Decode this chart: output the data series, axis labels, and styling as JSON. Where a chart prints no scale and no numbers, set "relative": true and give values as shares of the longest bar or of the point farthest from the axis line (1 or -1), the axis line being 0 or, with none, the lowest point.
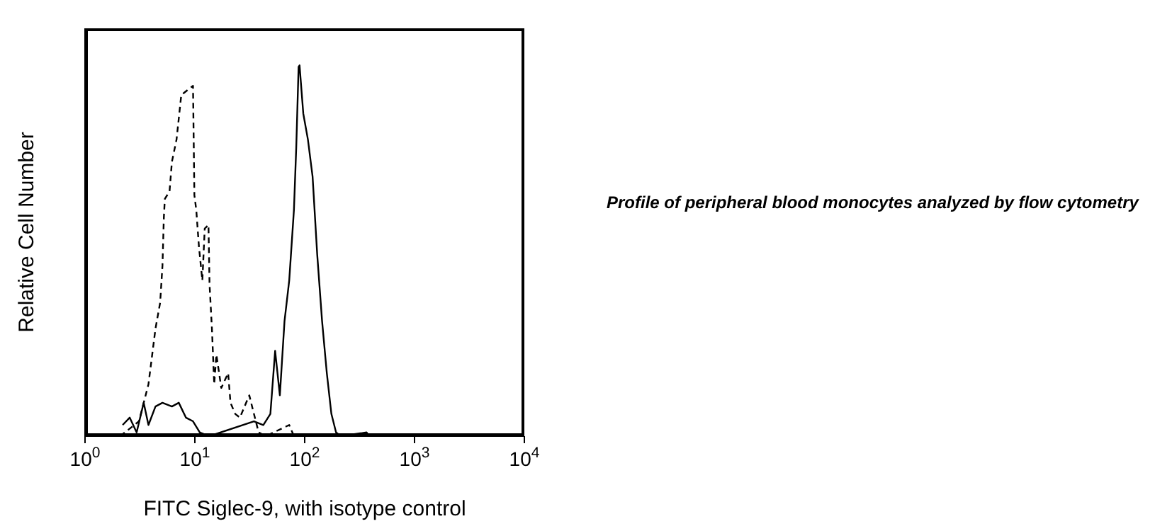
{
  "chart_data": {
    "type": "line",
    "xlabel": "FITC Siglec-9, with isotype control",
    "ylabel": "Relative Cell Number",
    "relative": true,
    "log": "x",
    "xlim": [
      1,
      10000
    ],
    "xticks": [
      {
        "value": 1,
        "label": "10$^{0}$"
      },
      {
        "value": 10,
        "label": "10$^{1}$"
      },
      {
        "value": 100,
        "label": "10$^{2}$"
      },
      {
        "value": 1000,
        "label": "10$^{3}$"
      },
      {
        "value": 10000,
        "label": "10$^{4}$"
      }
    ],
    "grid": false,
    "legend": false,
    "marker": "none",
    "annotations": [
      "Profile of peripheral blood monocytes analyzed by flow cytometry"
    ],
    "series": [
      {
        "color": "#000000",
        "line_style": "dashed",
        "x": [
          2.09,
          3.1,
          3.78,
          4.38,
          4.83,
          5.07,
          5.22,
          5.33,
          5.88,
          6.18,
          6.81,
          7.52,
          8.29,
          9.62,
          9.9,
          10.3,
          10.9,
          11.7,
          12.3,
          13.3,
          13.6,
          14.3,
          15.0,
          15.7,
          17.4,
          20.1,
          21.1,
          23.3,
          25.7,
          31.3,
          34.5,
          38.1,
          44.2,
          72.3,
          79.8
        ],
        "values": [
          0,
          0.04,
          0.14,
          0.29,
          0.36,
          0.46,
          0.59,
          0.64,
          0.66,
          0.74,
          0.8,
          0.92,
          0.93,
          0.945,
          0.65,
          0.61,
          0.51,
          0.42,
          0.56,
          0.57,
          0.41,
          0.29,
          0.14,
          0.22,
          0.13,
          0.17,
          0.09,
          0.06,
          0.05,
          0.11,
          0.06,
          0.01,
          0,
          0.03,
          0
        ]
      },
      {
        "color": "#000000",
        "line_style": "solid",
        "x": [
          2.2,
          2.55,
          2.95,
          3.42,
          3.78,
          4.38,
          5.07,
          6.18,
          7.14,
          8.29,
          9.62,
          11.1,
          13.6,
          34.5,
          42.0,
          48.7,
          53.8,
          59.4,
          65.5,
          72.3,
          79.8,
          83.8,
          88.0,
          89.8,
          97.1,
          107,
          118,
          130,
          144,
          159,
          175,
          193,
          213,
          366,
          385
        ],
        "values": [
          0.03,
          0.05,
          0.01,
          0.09,
          0.03,
          0.08,
          0.09,
          0.08,
          0.09,
          0.05,
          0.04,
          0.01,
          0,
          0.04,
          0.03,
          0.06,
          0.23,
          0.11,
          0.31,
          0.42,
          0.61,
          0.78,
          0.996,
          1,
          0.87,
          0.8,
          0.7,
          0.49,
          0.31,
          0.17,
          0.06,
          0.01,
          0,
          0.01,
          0
        ]
      }
    ]
  }
}
